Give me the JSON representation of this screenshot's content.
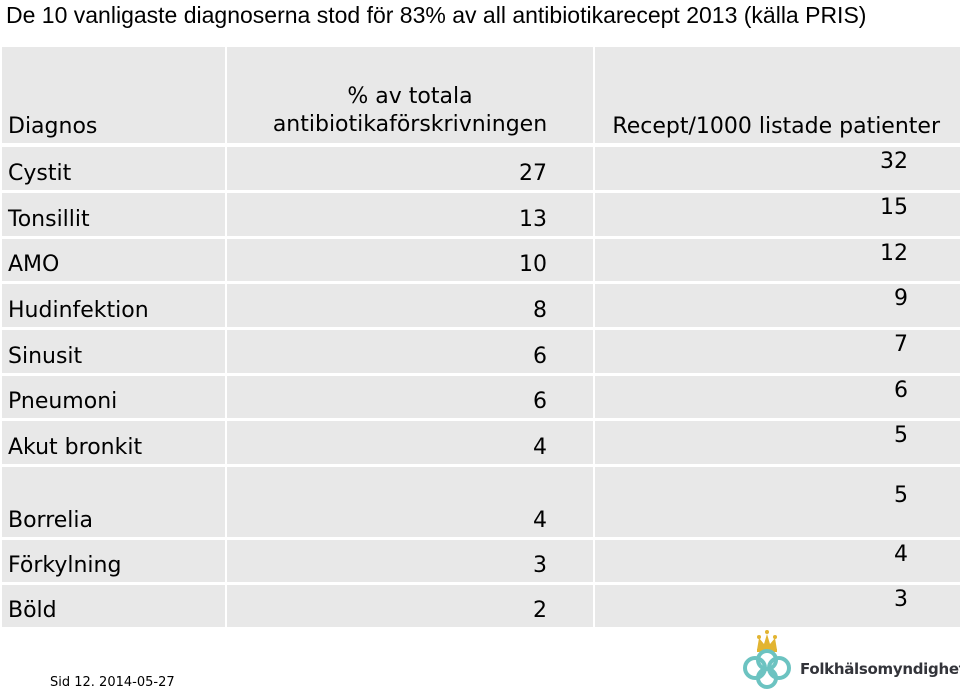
{
  "title": "De 10 vanligaste diagnoserna stod för 83% av all antibiotikarecept 2013 (källa PRIS)",
  "table": {
    "header_diagnos": "Diagnos",
    "header_pct_line1": "% av totala",
    "header_pct_line2": "antibiotikaförskrivningen",
    "header_recept": "Recept/1000 listade patienter",
    "rows": [
      {
        "diagnos": "Cystit",
        "pct": "27",
        "recept": "32"
      },
      {
        "diagnos": "Tonsillit",
        "pct": "13",
        "recept": "15"
      },
      {
        "diagnos": "AMO",
        "pct": "10",
        "recept": "12"
      },
      {
        "diagnos": "Hudinfektion",
        "pct": "8",
        "recept": "9"
      },
      {
        "diagnos": "Sinusit",
        "pct": "6",
        "recept": "7"
      },
      {
        "diagnos": "Pneumoni",
        "pct": "6",
        "recept": "6"
      },
      {
        "diagnos": "Akut bronkit",
        "pct": "4",
        "recept": "5"
      },
      {
        "diagnos": "Borrelia",
        "pct": "4",
        "recept": "5"
      },
      {
        "diagnos": "Förkylning",
        "pct": "3",
        "recept": "4"
      },
      {
        "diagnos": "Böld",
        "pct": "2",
        "recept": "3"
      }
    ]
  },
  "footer": "Sid 12. 2014-05-27",
  "logo": {
    "text": "Folkhälsomyndigheten",
    "icon": "crown-knot-logo-icon",
    "colors": {
      "knot": "#6cc3c1",
      "crown": "#e2b431"
    }
  },
  "colors": {
    "cell_background": "#e8e8e8",
    "grid": "#ffffff"
  }
}
